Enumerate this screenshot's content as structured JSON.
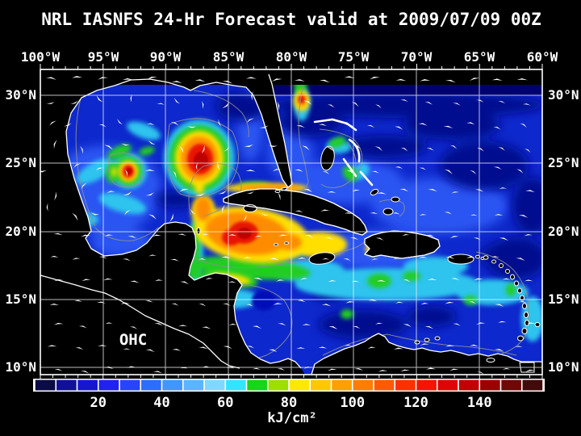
{
  "title": "NRL IASNFS  24-Hr Forecast valid at 2009/07/09 00Z",
  "map_label": "OHC",
  "axes": {
    "top": [
      "100°W",
      "95°W",
      "90°W",
      "85°W",
      "80°W",
      "75°W",
      "70°W",
      "65°W",
      "60°W"
    ],
    "left": [
      "30°N",
      "25°N",
      "20°N",
      "15°N",
      "10°N"
    ],
    "right": [
      "30°N",
      "25°N",
      "20°N",
      "15°N",
      "10°N"
    ]
  },
  "colorbar": {
    "unit": "kJ/cm²",
    "ticks": [
      "20",
      "40",
      "60",
      "80",
      "100",
      "120",
      "140"
    ],
    "min": 0,
    "max": 160,
    "segment_colors": [
      "#0b0b46",
      "#10109a",
      "#1616d2",
      "#2121f2",
      "#2744ff",
      "#2e6cff",
      "#3f97ff",
      "#5cb5ff",
      "#7fd9ff",
      "#33e4ff",
      "#17d517",
      "#9ede00",
      "#ffe800",
      "#ffc800",
      "#ffa000",
      "#ff7d00",
      "#ff5a00",
      "#ff3000",
      "#f81300",
      "#e00505",
      "#c20000",
      "#9b0000",
      "#700808",
      "#420b0b"
    ]
  },
  "chart_data": {
    "type": "heatmap",
    "title": "NRL IASNFS  24-Hr Forecast valid at 2009/07/09 00Z",
    "variable": "OHC",
    "unit": "kJ/cm²",
    "x_axis": {
      "label": "longitude",
      "ticks": [
        "100°W",
        "95°W",
        "90°W",
        "85°W",
        "80°W",
        "75°W",
        "70°W",
        "65°W",
        "60°W"
      ]
    },
    "y_axis": {
      "label": "latitude",
      "ticks": [
        "30°N",
        "25°N",
        "20°N",
        "15°N",
        "10°N"
      ]
    },
    "colorbar_ticks": [
      20,
      40,
      60,
      80,
      100,
      120,
      140
    ],
    "value_range": [
      0,
      160
    ],
    "grid": true,
    "overlays": [
      "white surface current vectors",
      "gray contour lines",
      "black land mask with white coastlines"
    ],
    "features": [
      {
        "name": "Gulf of Mexico warm-core ring",
        "lon": "90°W",
        "lat": "25.5°N",
        "peak_value": 150
      },
      {
        "name": "western Gulf warm eddy",
        "lon": "93°W",
        "lat": "24.5°N",
        "peak_value": 140
      },
      {
        "name": "NW Caribbean warm pool",
        "lon": "84°W",
        "lat": "20°N",
        "peak_value": 150
      },
      {
        "name": "Loop Current / Straits of Florida band north of Cuba",
        "lon": "82°W",
        "lat": "23.5°N",
        "peak_value": 110
      },
      {
        "name": "Gulf Stream eddy off NE Florida",
        "lon": "79.5°W",
        "lat": "29.5°N",
        "peak_value": 120
      },
      {
        "name": "Gulf of Gonâve warm spot (Haiti)",
        "lon": "73.5°W",
        "lat": "18.8°N",
        "peak_value": 100
      },
      {
        "name": "subtropical Atlantic 25–30°N",
        "value_range": [
          10,
          40
        ]
      },
      {
        "name": "central/eastern Caribbean",
        "value_range": [
          40,
          75
        ]
      },
      {
        "name": "cold eddy off Honduras",
        "lon": "83.5°W",
        "lat": "15°N",
        "peak_value": 15
      }
    ]
  }
}
